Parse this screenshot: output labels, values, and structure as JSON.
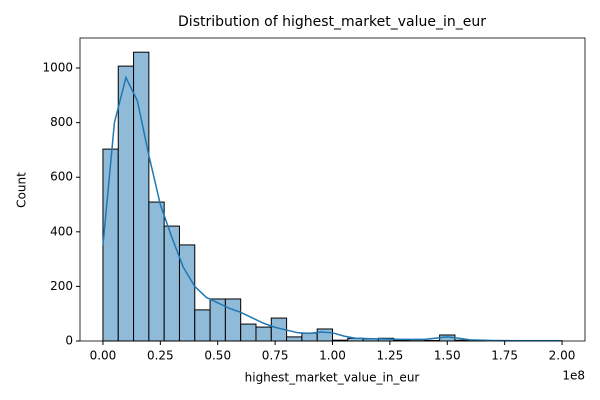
{
  "chart_data": {
    "type": "histogram",
    "title": "Distribution of highest_market_value_in_eur",
    "x_label": "highest_market_value_in_eur",
    "y_label": "Count",
    "x_offset_label": "1e8",
    "bins": [
      0,
      6666667,
      13333333,
      20000000,
      26666667,
      33333333,
      40000000,
      46666667,
      53333333,
      60000000,
      66666667,
      73333333,
      80000000,
      86666667,
      93333333,
      100000000,
      106666667,
      113333333,
      120000000,
      126666667,
      133333333,
      140000000,
      146666667,
      153333333,
      160000000,
      166666667,
      173333333,
      180000000,
      186666667,
      193333333,
      200000000
    ],
    "values": [
      703,
      1007,
      1058,
      509,
      421,
      352,
      114,
      154,
      154,
      62,
      51,
      84,
      15,
      29,
      44,
      3,
      10,
      8,
      10,
      3,
      1,
      2,
      22,
      3,
      1,
      0,
      1,
      0,
      0,
      1
    ],
    "color": "#8fbbd9",
    "edge_color": "#000000",
    "kde": {
      "color": "#1f77b4",
      "x": [
        0,
        5000000,
        10000000,
        15000000,
        20000000,
        25000000,
        30000000,
        35000000,
        40000000,
        45000000,
        50000000,
        55000000,
        60000000,
        65000000,
        70000000,
        75000000,
        80000000,
        85000000,
        90000000,
        95000000,
        100000000,
        105000000,
        110000000,
        120000000,
        130000000,
        140000000,
        150000000,
        155000000,
        160000000,
        170000000,
        180000000,
        190000000,
        200000000
      ],
      "values": [
        350,
        800,
        965,
        880,
        680,
        500,
        380,
        270,
        200,
        160,
        140,
        120,
        105,
        85,
        65,
        50,
        40,
        30,
        28,
        33,
        30,
        18,
        10,
        8,
        6,
        6,
        15,
        10,
        4,
        2,
        1,
        1,
        1
      ]
    },
    "xlim": [
      -10000000,
      210000000
    ],
    "ylim": [
      0,
      1110
    ],
    "xticks": [
      {
        "value": 0,
        "label": "0.00"
      },
      {
        "value": 25000000,
        "label": "0.25"
      },
      {
        "value": 50000000,
        "label": "0.50"
      },
      {
        "value": 75000000,
        "label": "0.75"
      },
      {
        "value": 100000000,
        "label": "1.00"
      },
      {
        "value": 125000000,
        "label": "1.25"
      },
      {
        "value": 150000000,
        "label": "1.50"
      },
      {
        "value": 175000000,
        "label": "1.75"
      },
      {
        "value": 200000000,
        "label": "2.00"
      }
    ],
    "yticks": [
      0,
      200,
      400,
      600,
      800,
      1000
    ]
  }
}
